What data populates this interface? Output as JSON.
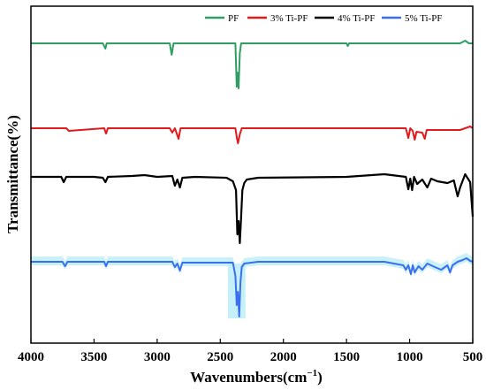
{
  "chart_data": {
    "type": "line",
    "title": "",
    "xlabel": "Wavenumbers(cm",
    "xlabel_sup": "−1",
    "xlabel_close": ")",
    "ylabel": "Transmittance(%)",
    "xlim": [
      4000,
      500
    ],
    "x_ticks": [
      4000,
      3500,
      3000,
      2500,
      2000,
      1500,
      1000,
      500
    ],
    "x_reversed": true,
    "y_ticks_shown": false,
    "legend_position": "top-right",
    "series": [
      {
        "name": "PF",
        "color": "#2e9e62",
        "points": [
          [
            4000,
            49
          ],
          [
            3430,
            49
          ],
          [
            3410,
            55
          ],
          [
            3400,
            49
          ],
          [
            2900,
            49
          ],
          [
            2885,
            62
          ],
          [
            2870,
            49
          ],
          [
            2380,
            49
          ],
          [
            2370,
            98
          ],
          [
            2365,
            82
          ],
          [
            2355,
            100
          ],
          [
            2345,
            60
          ],
          [
            2335,
            49
          ],
          [
            1500,
            49
          ],
          [
            1490,
            52
          ],
          [
            1480,
            49
          ],
          [
            600,
            49
          ],
          [
            560,
            46
          ],
          [
            530,
            49
          ],
          [
            500,
            49
          ]
        ]
      },
      {
        "name": "3% Ti-PF",
        "color": "#e31a1c",
        "points": [
          [
            4000,
            145
          ],
          [
            3720,
            145
          ],
          [
            3700,
            148
          ],
          [
            3420,
            145
          ],
          [
            3405,
            151
          ],
          [
            3390,
            145
          ],
          [
            2900,
            145
          ],
          [
            2880,
            150
          ],
          [
            2860,
            145
          ],
          [
            2830,
            157
          ],
          [
            2815,
            145
          ],
          [
            2380,
            145
          ],
          [
            2370,
            155
          ],
          [
            2360,
            162
          ],
          [
            2345,
            152
          ],
          [
            2330,
            145
          ],
          [
            1030,
            145
          ],
          [
            1010,
            156
          ],
          [
            995,
            145
          ],
          [
            975,
            148
          ],
          [
            960,
            158
          ],
          [
            945,
            149
          ],
          [
            900,
            150
          ],
          [
            880,
            157
          ],
          [
            865,
            147
          ],
          [
            820,
            147
          ],
          [
            700,
            147
          ],
          [
            600,
            147
          ],
          [
            520,
            143
          ],
          [
            500,
            145
          ]
        ]
      },
      {
        "name": "4% Ti-PF",
        "color": "#000000",
        "points": [
          [
            4000,
            200
          ],
          [
            3760,
            200
          ],
          [
            3740,
            206
          ],
          [
            3720,
            200
          ],
          [
            3500,
            200
          ],
          [
            3430,
            201
          ],
          [
            3410,
            206
          ],
          [
            3390,
            200
          ],
          [
            3200,
            199
          ],
          [
            3100,
            198
          ],
          [
            3000,
            200
          ],
          [
            2880,
            199
          ],
          [
            2860,
            210
          ],
          [
            2840,
            203
          ],
          [
            2820,
            212
          ],
          [
            2800,
            201
          ],
          [
            2700,
            200
          ],
          [
            2450,
            201
          ],
          [
            2400,
            205
          ],
          [
            2375,
            215
          ],
          [
            2365,
            265
          ],
          [
            2355,
            250
          ],
          [
            2345,
            275
          ],
          [
            2335,
            245
          ],
          [
            2325,
            215
          ],
          [
            2310,
            207
          ],
          [
            2290,
            203
          ],
          [
            2200,
            201
          ],
          [
            1500,
            200
          ],
          [
            1200,
            197
          ],
          [
            1030,
            200
          ],
          [
            1010,
            214
          ],
          [
            995,
            202
          ],
          [
            980,
            215
          ],
          [
            965,
            200
          ],
          [
            940,
            208
          ],
          [
            900,
            203
          ],
          [
            860,
            212
          ],
          [
            830,
            202
          ],
          [
            780,
            205
          ],
          [
            700,
            207
          ],
          [
            650,
            204
          ],
          [
            620,
            222
          ],
          [
            600,
            212
          ],
          [
            560,
            197
          ],
          [
            520,
            206
          ],
          [
            500,
            245
          ]
        ]
      },
      {
        "name": "5% Ti-PF",
        "color": "#3a6ff0",
        "points": [
          [
            4000,
            296
          ],
          [
            3750,
            296
          ],
          [
            3730,
            301
          ],
          [
            3710,
            296
          ],
          [
            3420,
            296
          ],
          [
            3405,
            301
          ],
          [
            3390,
            296
          ],
          [
            2880,
            296
          ],
          [
            2860,
            302
          ],
          [
            2840,
            298
          ],
          [
            2820,
            306
          ],
          [
            2800,
            297
          ],
          [
            2400,
            297
          ],
          [
            2380,
            312
          ],
          [
            2370,
            345
          ],
          [
            2360,
            330
          ],
          [
            2350,
            358
          ],
          [
            2340,
            320
          ],
          [
            2330,
            302
          ],
          [
            2310,
            298
          ],
          [
            2200,
            296
          ],
          [
            1500,
            296
          ],
          [
            1200,
            296
          ],
          [
            1050,
            300
          ],
          [
            1030,
            305
          ],
          [
            1010,
            300
          ],
          [
            990,
            310
          ],
          [
            975,
            300
          ],
          [
            960,
            308
          ],
          [
            930,
            301
          ],
          [
            900,
            305
          ],
          [
            860,
            298
          ],
          [
            800,
            302
          ],
          [
            750,
            305
          ],
          [
            700,
            300
          ],
          [
            680,
            308
          ],
          [
            660,
            300
          ],
          [
            620,
            296
          ],
          [
            580,
            294
          ],
          [
            550,
            292
          ],
          [
            520,
            295
          ],
          [
            500,
            296
          ]
        ]
      }
    ],
    "shading_color": "#b7ecf7"
  }
}
